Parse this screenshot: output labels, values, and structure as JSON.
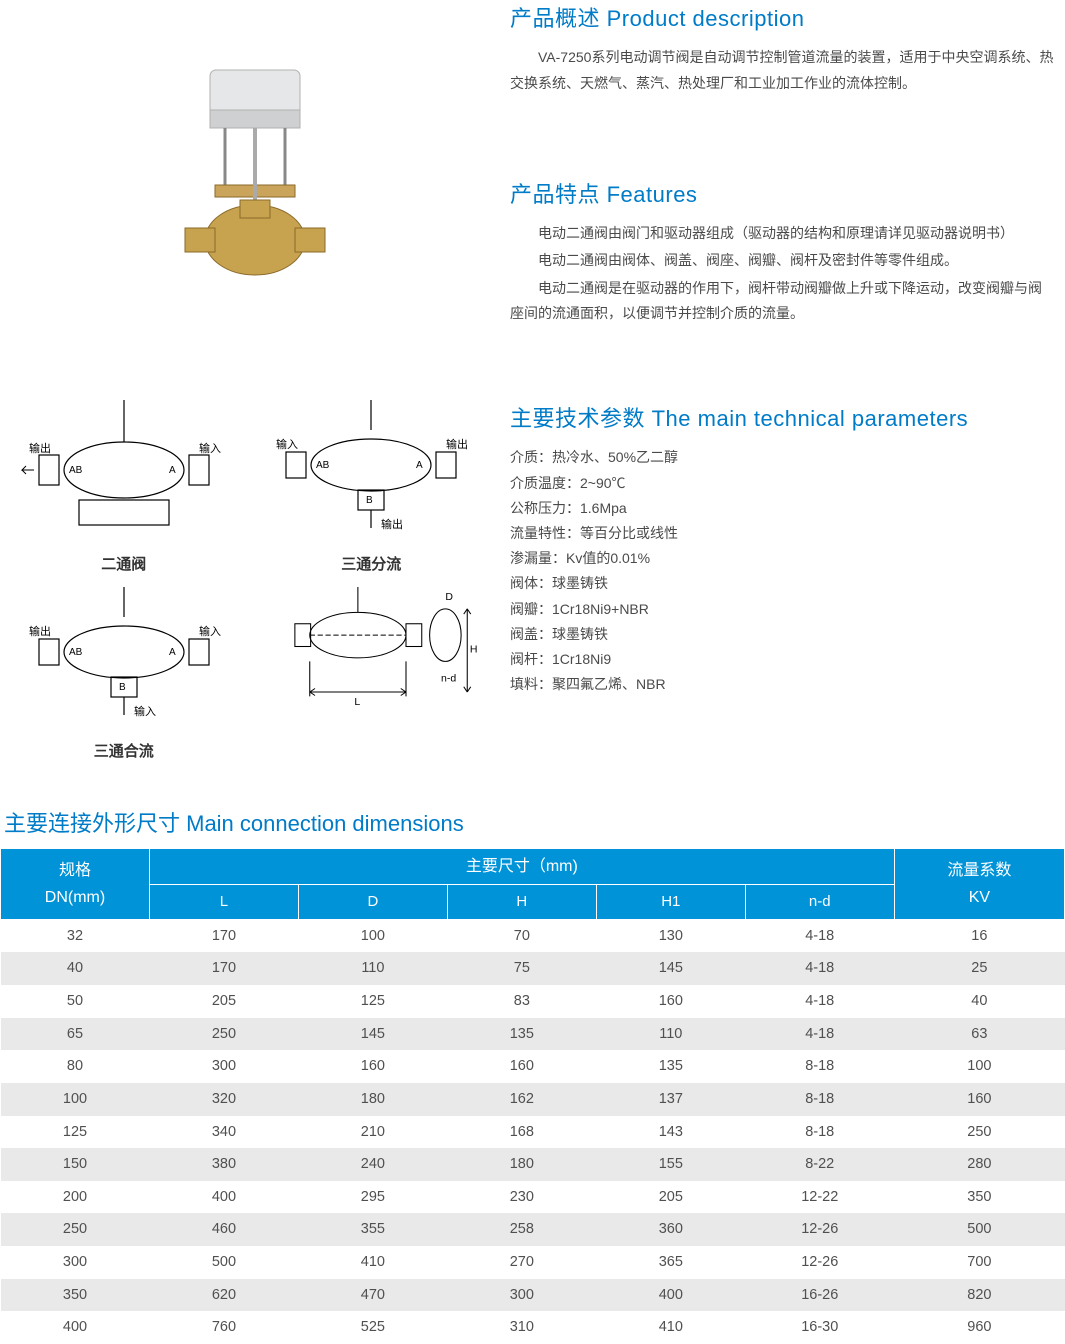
{
  "product_description": {
    "heading": "产品概述 Product description",
    "paragraphs": [
      "VA-7250系列电动调节阀是自动调节控制管道流量的装置，适用于中央空调系统、热交换系统、天燃气、蒸汽、热处理厂和工业加工作业的流体控制。"
    ]
  },
  "features": {
    "heading": "产品特点 Features",
    "paragraphs": [
      "电动二通阀由阀门和驱动器组成（驱动器的结构和原理请详见驱动器说明书）",
      "电动二通阀由阀体、阀盖、阀座、阀瓣、阀杆及密封件等零件组成。",
      "电动二通阀是在驱动器的作用下，阀杆带动阀瓣做上升或下降运动，改变阀瓣与阀座间的流通面积，以便调节并控制介质的流量。"
    ]
  },
  "tech_params": {
    "heading": "主要技术参数 The main technical parameters",
    "lines": [
      "介质：热冷水、50%乙二醇",
      "介质温度：2~90℃",
      "公称压力：1.6Mpa",
      "流量特性：等百分比或线性",
      "渗漏量：Kv值的0.01%",
      "阀体：球墨铸铁",
      "阀瓣：1Cr18Ni9+NBR",
      "阀盖：球墨铸铁",
      "阀杆：1Cr18Ni9",
      "填料：聚四氟乙烯、NBR"
    ]
  },
  "diagrams": {
    "items": [
      {
        "label": "二通阀",
        "ports": [
          "输出",
          "输入"
        ],
        "tag_left": "AB",
        "tag_right": "A"
      },
      {
        "label": "三通分流",
        "ports": [
          "输入",
          "输出",
          "输出"
        ],
        "tag_left": "AB",
        "tag_right": "A",
        "tag_bottom": "B"
      },
      {
        "label": "三通合流",
        "ports": [
          "输出",
          "输入",
          "输入"
        ],
        "tag_left": "AB",
        "tag_right": "A",
        "tag_bottom": "B"
      },
      {
        "label": "",
        "dims": [
          "L",
          "H",
          "D",
          "n-d"
        ]
      }
    ],
    "stroke": "#000000",
    "stroke_width": 1.2
  },
  "dimensions": {
    "heading": "主要连接外形尺寸 Main connection dimensions",
    "header_main_group": "主要尺寸（mm)",
    "header_spec": "规格",
    "header_spec_sub": "DN(mm)",
    "header_kv": "流量系数",
    "header_kv_sub": "KV",
    "columns": [
      "L",
      "D",
      "H",
      "H1",
      "n-d"
    ],
    "rows": [
      [
        "32",
        "170",
        "100",
        "70",
        "130",
        "4-18",
        "16"
      ],
      [
        "40",
        "170",
        "110",
        "75",
        "145",
        "4-18",
        "25"
      ],
      [
        "50",
        "205",
        "125",
        "83",
        "160",
        "4-18",
        "40"
      ],
      [
        "65",
        "250",
        "145",
        "135",
        "110",
        "4-18",
        "63"
      ],
      [
        "80",
        "300",
        "160",
        "160",
        "135",
        "8-18",
        "100"
      ],
      [
        "100",
        "320",
        "180",
        "162",
        "137",
        "8-18",
        "160"
      ],
      [
        "125",
        "340",
        "210",
        "168",
        "143",
        "8-18",
        "250"
      ],
      [
        "150",
        "380",
        "240",
        "180",
        "155",
        "8-22",
        "280"
      ],
      [
        "200",
        "400",
        "295",
        "230",
        "205",
        "12-22",
        "350"
      ],
      [
        "250",
        "460",
        "355",
        "258",
        "360",
        "12-26",
        "500"
      ],
      [
        "300",
        "500",
        "410",
        "270",
        "365",
        "12-26",
        "700"
      ],
      [
        "350",
        "620",
        "470",
        "300",
        "400",
        "16-26",
        "820"
      ],
      [
        "400",
        "760",
        "525",
        "310",
        "410",
        "16-30",
        "960"
      ]
    ],
    "header_bg": "#0093d8",
    "header_fg": "#ffffff",
    "row_alt_bg": "#e9e9e9"
  },
  "colors": {
    "heading": "#007bc7",
    "body_text": "#4a4a4a"
  }
}
